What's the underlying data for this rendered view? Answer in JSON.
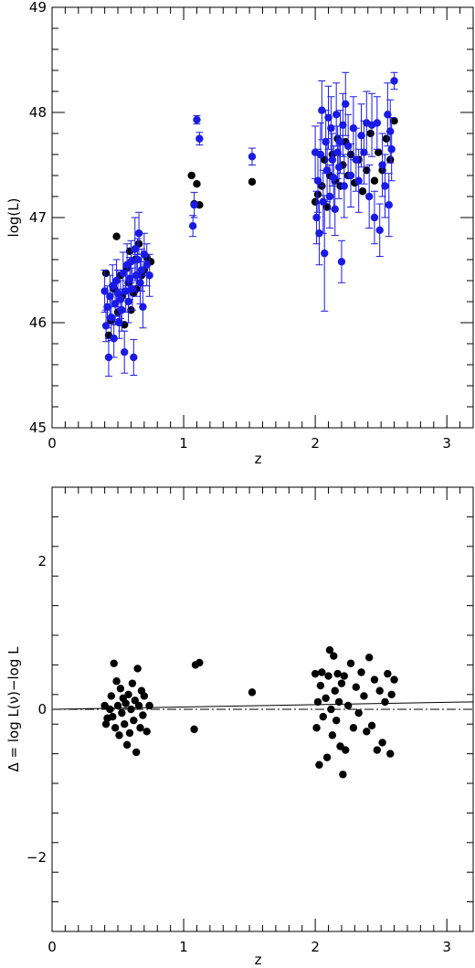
{
  "chart_data": [
    {
      "type": "scatter",
      "xlabel": "z",
      "ylabel": "log(L)",
      "xlim": [
        0,
        3.2
      ],
      "ylim": [
        45,
        49
      ],
      "x_ticks": [
        0,
        1,
        2,
        3
      ],
      "x_tick_labels": [
        "0",
        "1",
        "2",
        "3"
      ],
      "y_ticks": [
        45,
        46,
        47,
        48,
        49
      ],
      "y_tick_labels": [
        "45",
        "46",
        "47",
        "48",
        "49"
      ],
      "grid": false,
      "series": [
        {
          "color": "#000000",
          "error_bars": false,
          "points": [
            [
              0.41,
              46.47
            ],
            [
              0.43,
              45.88
            ],
            [
              0.45,
              46.02
            ],
            [
              0.47,
              46.32
            ],
            [
              0.49,
              46.82
            ],
            [
              0.5,
              46.1
            ],
            [
              0.52,
              46.45
            ],
            [
              0.53,
              46.25
            ],
            [
              0.55,
              45.98
            ],
            [
              0.57,
              46.52
            ],
            [
              0.58,
              46.38
            ],
            [
              0.59,
              46.68
            ],
            [
              0.6,
              46.12
            ],
            [
              0.62,
              46.28
            ],
            [
              0.63,
              46.6
            ],
            [
              0.64,
              46.32
            ],
            [
              0.66,
              46.75
            ],
            [
              0.68,
              46.45
            ],
            [
              0.7,
              46.5
            ],
            [
              0.72,
              46.62
            ],
            [
              0.75,
              46.58
            ],
            [
              1.06,
              47.4
            ],
            [
              1.08,
              47.13
            ],
            [
              1.1,
              47.32
            ],
            [
              1.12,
              47.12
            ],
            [
              1.52,
              47.34
            ],
            [
              2.0,
              47.15
            ],
            [
              2.02,
              47.22
            ],
            [
              2.05,
              47.3
            ],
            [
              2.07,
              47.55
            ],
            [
              2.09,
              47.1
            ],
            [
              2.11,
              47.4
            ],
            [
              2.13,
              47.6
            ],
            [
              2.15,
              47.35
            ],
            [
              2.17,
              47.75
            ],
            [
              2.19,
              47.3
            ],
            [
              2.21,
              47.5
            ],
            [
              2.23,
              47.72
            ],
            [
              2.25,
              47.4
            ],
            [
              2.27,
              47.6
            ],
            [
              2.3,
              47.33
            ],
            [
              2.33,
              47.55
            ],
            [
              2.36,
              47.25
            ],
            [
              2.39,
              47.45
            ],
            [
              2.42,
              47.8
            ],
            [
              2.45,
              47.35
            ],
            [
              2.48,
              47.62
            ],
            [
              2.51,
              47.45
            ],
            [
              2.54,
              47.75
            ],
            [
              2.57,
              47.55
            ],
            [
              2.6,
              47.92
            ]
          ]
        },
        {
          "color": "#1a1ae6",
          "error_bars": true,
          "points": [
            [
              0.4,
              46.3,
              0.2
            ],
            [
              0.41,
              45.97,
              0.15
            ],
            [
              0.42,
              46.15,
              0.2
            ],
            [
              0.43,
              45.67,
              0.18
            ],
            [
              0.44,
              46.25,
              0.2
            ],
            [
              0.45,
              46.05,
              0.22
            ],
            [
              0.46,
              46.35,
              0.2
            ],
            [
              0.47,
              45.85,
              0.18
            ],
            [
              0.48,
              46.18,
              0.2
            ],
            [
              0.49,
              46.4,
              0.2
            ],
            [
              0.5,
              46.28,
              0.22
            ],
            [
              0.51,
              46.0,
              0.15
            ],
            [
              0.52,
              46.22,
              0.18
            ],
            [
              0.53,
              46.12,
              0.2
            ],
            [
              0.54,
              46.47,
              0.2
            ],
            [
              0.55,
              45.72,
              0.2
            ],
            [
              0.56,
              46.3,
              0.2
            ],
            [
              0.57,
              46.55,
              0.2
            ],
            [
              0.58,
              46.2,
              0.2
            ],
            [
              0.59,
              46.42,
              0.2
            ],
            [
              0.6,
              46.58,
              0.2
            ],
            [
              0.61,
              46.32,
              0.2
            ],
            [
              0.62,
              45.67,
              0.17
            ],
            [
              0.63,
              46.7,
              0.3
            ],
            [
              0.64,
              46.45,
              0.2
            ],
            [
              0.65,
              46.6,
              0.2
            ],
            [
              0.66,
              46.85,
              0.2
            ],
            [
              0.67,
              46.38,
              0.2
            ],
            [
              0.68,
              46.5,
              0.2
            ],
            [
              0.69,
              46.15,
              0.2
            ],
            [
              0.7,
              46.65,
              0.2
            ],
            [
              0.72,
              46.55,
              0.2
            ],
            [
              0.74,
              46.45,
              0.2
            ],
            [
              1.07,
              46.92,
              0.1
            ],
            [
              1.08,
              47.12,
              0.12
            ],
            [
              1.1,
              47.93,
              0.04
            ],
            [
              1.12,
              47.75,
              0.06
            ],
            [
              1.52,
              47.58,
              0.08
            ],
            [
              2.0,
              47.62,
              0.25
            ],
            [
              2.01,
              47.0,
              0.25
            ],
            [
              2.02,
              47.35,
              0.3
            ],
            [
              2.03,
              46.85,
              0.3
            ],
            [
              2.04,
              47.6,
              0.3
            ],
            [
              2.05,
              48.02,
              0.28
            ],
            [
              2.06,
              47.15,
              0.3
            ],
            [
              2.07,
              46.66,
              0.55
            ],
            [
              2.08,
              47.72,
              0.3
            ],
            [
              2.09,
              47.45,
              0.3
            ],
            [
              2.1,
              47.95,
              0.3
            ],
            [
              2.11,
              47.2,
              0.3
            ],
            [
              2.12,
              47.85,
              0.3
            ],
            [
              2.13,
              47.55,
              0.25
            ],
            [
              2.14,
              47.38,
              0.3
            ],
            [
              2.15,
              47.08,
              0.25
            ],
            [
              2.16,
              47.98,
              0.3
            ],
            [
              2.17,
              47.62,
              0.25
            ],
            [
              2.18,
              47.48,
              0.3
            ],
            [
              2.19,
              47.72,
              0.3
            ],
            [
              2.2,
              46.58,
              0.2
            ],
            [
              2.21,
              47.88,
              0.3
            ],
            [
              2.22,
              47.3,
              0.3
            ],
            [
              2.23,
              48.08,
              0.3
            ],
            [
              2.25,
              47.68,
              0.3
            ],
            [
              2.27,
              47.4,
              0.3
            ],
            [
              2.29,
              47.85,
              0.3
            ],
            [
              2.31,
              47.55,
              0.3
            ],
            [
              2.33,
              47.35,
              0.3
            ],
            [
              2.35,
              47.78,
              0.3
            ],
            [
              2.37,
              47.62,
              0.3
            ],
            [
              2.39,
              47.9,
              0.3
            ],
            [
              2.41,
              47.2,
              0.3
            ],
            [
              2.43,
              47.88,
              0.3
            ],
            [
              2.45,
              47.0,
              0.25
            ],
            [
              2.47,
              47.9,
              0.25
            ],
            [
              2.49,
              46.88,
              0.25
            ],
            [
              2.51,
              47.5,
              0.3
            ],
            [
              2.53,
              47.3,
              0.3
            ],
            [
              2.55,
              47.98,
              0.3
            ],
            [
              2.56,
              47.12,
              0.3
            ],
            [
              2.57,
              47.82,
              0.3
            ],
            [
              2.58,
              47.65,
              0.3
            ],
            [
              2.6,
              48.3,
              0.08
            ]
          ]
        }
      ]
    },
    {
      "type": "scatter",
      "xlabel": "z",
      "ylabel": "Δ = log  L(ν)−log L",
      "xlim": [
        0,
        3.2
      ],
      "ylim": [
        -3,
        3
      ],
      "x_ticks": [
        0,
        1,
        2,
        3
      ],
      "x_tick_labels": [
        "0",
        "1",
        "2",
        "3"
      ],
      "y_ticks": [
        -2,
        0,
        2
      ],
      "y_tick_labels": [
        "−2",
        "0",
        "2"
      ],
      "grid": false,
      "lines": [
        {
          "style": "solid",
          "x": [
            0,
            3.2
          ],
          "y": [
            0.0,
            0.1
          ]
        },
        {
          "style": "dashdot",
          "x": [
            0,
            3.2
          ],
          "y": [
            0.0,
            0.0
          ]
        }
      ],
      "series": [
        {
          "color": "#000000",
          "points": [
            [
              0.4,
              0.05
            ],
            [
              0.41,
              -0.2
            ],
            [
              0.42,
              -0.12
            ],
            [
              0.44,
              0.0
            ],
            [
              0.45,
              0.18
            ],
            [
              0.46,
              -0.1
            ],
            [
              0.47,
              0.62
            ],
            [
              0.48,
              -0.25
            ],
            [
              0.49,
              0.38
            ],
            [
              0.5,
              0.05
            ],
            [
              0.51,
              -0.35
            ],
            [
              0.52,
              0.28
            ],
            [
              0.53,
              -0.05
            ],
            [
              0.54,
              0.15
            ],
            [
              0.55,
              -0.2
            ],
            [
              0.56,
              0.08
            ],
            [
              0.57,
              -0.48
            ],
            [
              0.58,
              0.2
            ],
            [
              0.59,
              -0.32
            ],
            [
              0.6,
              0.0
            ],
            [
              0.61,
              0.35
            ],
            [
              0.62,
              -0.15
            ],
            [
              0.63,
              0.12
            ],
            [
              0.64,
              -0.58
            ],
            [
              0.65,
              0.55
            ],
            [
              0.66,
              0.05
            ],
            [
              0.67,
              -0.25
            ],
            [
              0.68,
              0.25
            ],
            [
              0.69,
              -0.08
            ],
            [
              0.7,
              0.18
            ],
            [
              0.72,
              -0.3
            ],
            [
              0.74,
              0.05
            ],
            [
              1.08,
              -0.27
            ],
            [
              1.09,
              0.6
            ],
            [
              1.12,
              0.63
            ],
            [
              1.52,
              0.23
            ],
            [
              2.0,
              0.48
            ],
            [
              2.01,
              -0.25
            ],
            [
              2.02,
              0.1
            ],
            [
              2.03,
              -0.75
            ],
            [
              2.04,
              0.32
            ],
            [
              2.05,
              0.5
            ],
            [
              2.06,
              -0.1
            ],
            [
              2.08,
              0.15
            ],
            [
              2.09,
              -0.65
            ],
            [
              2.1,
              0.45
            ],
            [
              2.11,
              0.8
            ],
            [
              2.12,
              0.0
            ],
            [
              2.13,
              -0.35
            ],
            [
              2.14,
              0.72
            ],
            [
              2.15,
              0.25
            ],
            [
              2.16,
              -0.15
            ],
            [
              2.17,
              0.48
            ],
            [
              2.18,
              0.1
            ],
            [
              2.19,
              -0.5
            ],
            [
              2.2,
              0.35
            ],
            [
              2.21,
              -0.88
            ],
            [
              2.22,
              0.45
            ],
            [
              2.23,
              -0.55
            ],
            [
              2.25,
              0.05
            ],
            [
              2.27,
              0.62
            ],
            [
              2.29,
              -0.25
            ],
            [
              2.31,
              0.3
            ],
            [
              2.33,
              -0.05
            ],
            [
              2.35,
              0.5
            ],
            [
              2.37,
              0.18
            ],
            [
              2.39,
              -0.3
            ],
            [
              2.41,
              0.7
            ],
            [
              2.43,
              -0.22
            ],
            [
              2.45,
              0.4
            ],
            [
              2.47,
              -0.55
            ],
            [
              2.49,
              0.25
            ],
            [
              2.51,
              -0.45
            ],
            [
              2.53,
              0.1
            ],
            [
              2.55,
              0.48
            ],
            [
              2.57,
              -0.6
            ],
            [
              2.58,
              0.2
            ],
            [
              2.6,
              0.4
            ]
          ]
        }
      ]
    }
  ]
}
